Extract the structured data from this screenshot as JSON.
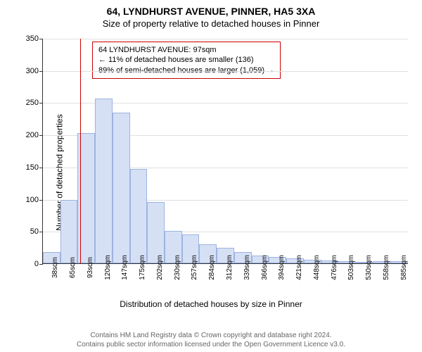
{
  "title_main": "64, LYNDHURST AVENUE, PINNER, HA5 3XA",
  "title_sub": "Size of property relative to detached houses in Pinner",
  "y_axis_label": "Number of detached properties",
  "x_axis_label": "Distribution of detached houses by size in Pinner",
  "chart": {
    "type": "histogram",
    "bar_fill": "#d6e0f5",
    "bar_border": "#9db3e0",
    "grid_color": "#e0e0e0",
    "background": "#ffffff",
    "axis_color": "#333333",
    "ylim": [
      0,
      350
    ],
    "ytick_step": 50,
    "yticks": [
      0,
      50,
      100,
      150,
      200,
      250,
      300,
      350
    ],
    "categories": [
      "38sqm",
      "65sqm",
      "93sqm",
      "120sqm",
      "147sqm",
      "175sqm",
      "202sqm",
      "230sqm",
      "257sqm",
      "284sqm",
      "312sqm",
      "339sqm",
      "366sqm",
      "394sqm",
      "421sqm",
      "448sqm",
      "476sqm",
      "503sqm",
      "530sqm",
      "558sqm",
      "585sqm"
    ],
    "values": [
      18,
      98,
      202,
      256,
      234,
      147,
      95,
      50,
      45,
      30,
      24,
      18,
      12,
      10,
      8,
      6,
      4,
      3,
      2,
      3,
      3
    ],
    "marker_line": {
      "position_index": 2.15,
      "color": "#cc0000"
    }
  },
  "info_box": {
    "line1": "64 LYNDHURST AVENUE: 97sqm",
    "line2": "← 11% of detached houses are smaller (136)",
    "line3": "89% of semi-detached houses are larger (1,059) →",
    "border_color": "#cc0000",
    "background": "#ffffff",
    "fontsize": 11
  },
  "footer": {
    "line1": "Contains HM Land Registry data © Crown copyright and database right 2024.",
    "line2": "Contains public sector information licensed under the Open Government Licence v3.0.",
    "color": "#666666",
    "fontsize": 10
  },
  "typography": {
    "title_fontsize": 14,
    "subtitle_fontsize": 13,
    "axis_label_fontsize": 12,
    "tick_fontsize": 11
  }
}
